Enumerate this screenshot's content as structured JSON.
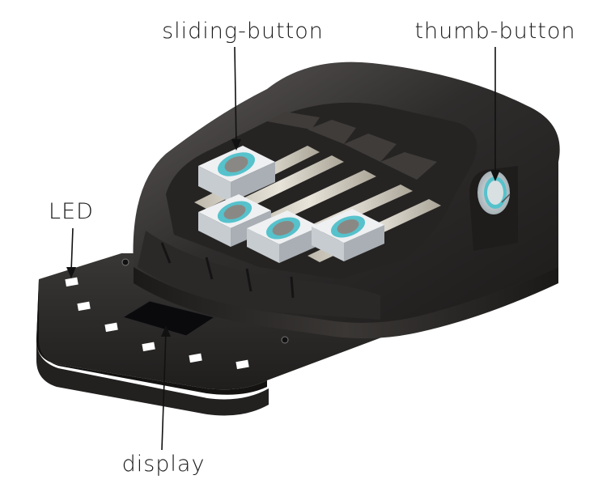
{
  "figure": {
    "subject": "handheld-device-render",
    "colors": {
      "body": "#2e2c2b",
      "body_highlight": "#6a6766",
      "body_shadow": "#141312",
      "rail": "#d8d4c8",
      "button_face": "#e2e6ea",
      "button_ring": "#56c2cc",
      "button_core": "#8a8884",
      "led": "#ffffff",
      "display": "#0a0a0c"
    },
    "counts": {
      "sliding_buttons": 4,
      "leds": 6
    }
  },
  "labels": {
    "sliding_button": "sliding-button",
    "thumb_button": "thumb-button",
    "led": "LED",
    "display": "display"
  }
}
